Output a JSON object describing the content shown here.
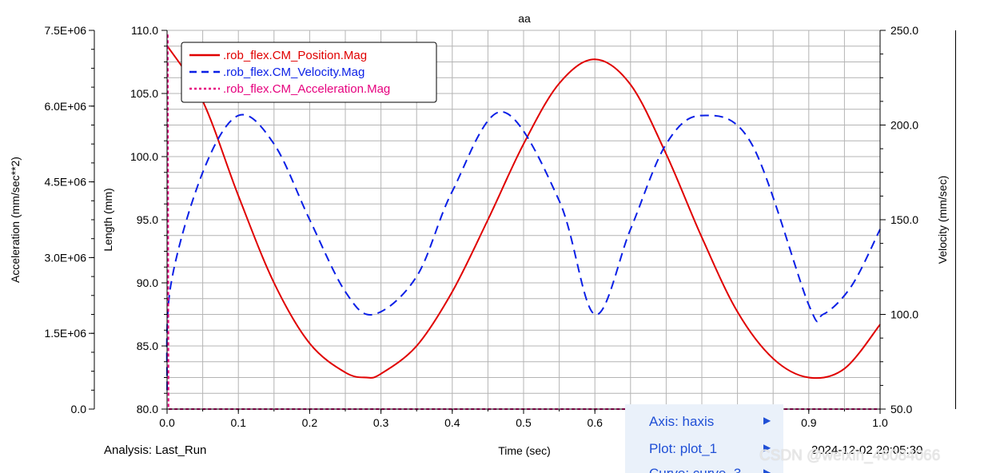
{
  "chart_data": {
    "type": "line",
    "title": "aa",
    "xlabel": "Time (sec)",
    "xlim": [
      0.0,
      1.0
    ],
    "x_ticks": [
      "0.0",
      "0.1",
      "0.2",
      "0.3",
      "0.4",
      "0.5",
      "0.6",
      "0.7",
      "0.8",
      "0.9",
      "1.0"
    ],
    "axes": {
      "length": {
        "label": "Length (mm)",
        "ylim": [
          80.0,
          110.0
        ],
        "ticks": [
          "80.0",
          "85.0",
          "90.0",
          "95.0",
          "100.0",
          "105.0",
          "110.0"
        ]
      },
      "acceleration": {
        "label": "Acceleration (mm/sec**2)",
        "ylim": [
          0.0,
          7500000
        ],
        "ticks": [
          "0.0",
          "1.5E+06",
          "3.0E+06",
          "4.5E+06",
          "6.0E+06",
          "7.5E+06"
        ]
      },
      "velocity": {
        "label": "Velocity (mm/sec)",
        "ylim": [
          50.0,
          250.0
        ],
        "ticks": [
          "50.0",
          "100.0",
          "150.0",
          "200.0",
          "250.0"
        ]
      }
    },
    "grid": true,
    "legend_position": "top-left",
    "series": [
      {
        "name": ".rob_flex.CM_Position.Mag",
        "axis": "length",
        "color": "#e00000",
        "style": "solid",
        "x": [
          0.0,
          0.05,
          0.1,
          0.15,
          0.2,
          0.25,
          0.28,
          0.3,
          0.35,
          0.4,
          0.45,
          0.5,
          0.55,
          0.6,
          0.65,
          0.7,
          0.75,
          0.8,
          0.85,
          0.9,
          0.95,
          1.0
        ],
        "values": [
          108.8,
          104.4,
          96.9,
          90.0,
          85.2,
          82.9,
          82.5,
          82.8,
          85.0,
          89.3,
          95.0,
          101.0,
          105.8,
          107.7,
          105.7,
          100.2,
          93.6,
          87.7,
          84.0,
          82.5,
          83.2,
          86.7
        ]
      },
      {
        "name": ".rob_flex.CM_Velocity.Mag",
        "axis": "velocity",
        "color": "#0a1fe6",
        "style": "dashed",
        "x": [
          0.0,
          0.005,
          0.05,
          0.1,
          0.15,
          0.2,
          0.25,
          0.29,
          0.35,
          0.4,
          0.47,
          0.55,
          0.6,
          0.65,
          0.7,
          0.75,
          0.82,
          0.9,
          0.92,
          0.96,
          1.0
        ],
        "values": [
          60,
          115,
          175,
          205,
          190,
          150,
          112,
          100,
          120,
          165,
          207,
          160,
          100,
          145,
          190,
          205,
          190,
          105,
          100,
          115,
          145
        ]
      },
      {
        "name": ".rob_flex.CM_Acceleration.Mag",
        "axis": "acceleration",
        "color": "#e6007e",
        "style": "dotted",
        "x": [
          0.0,
          0.001,
          0.002,
          1.0
        ],
        "values": [
          7400000,
          7400000,
          0,
          0
        ]
      }
    ]
  },
  "footer": {
    "analysis": "Analysis:  Last_Run",
    "timestamp": "2024-12-02 20:05:30"
  },
  "context_menu": {
    "items": [
      "Axis: haxis",
      "Plot: plot_1",
      "Curve: curve_3"
    ]
  },
  "watermark": "CSDN @weixin_46084066"
}
